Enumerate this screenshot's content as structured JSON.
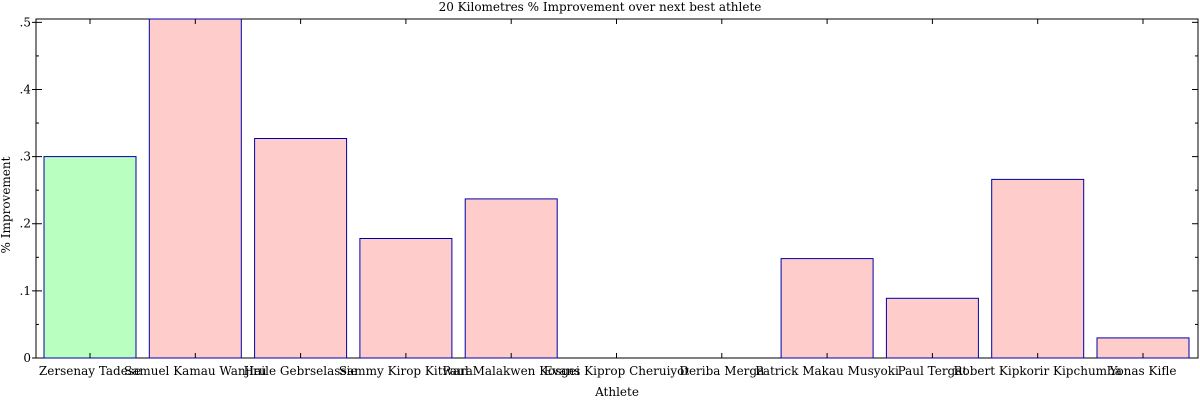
{
  "chart_data": {
    "type": "bar",
    "title": "20 Kilometres % Improvement over next best athlete",
    "xlabel": "Athlete",
    "ylabel": "% Improvement",
    "ylim": [
      0,
      0.505
    ],
    "yticks": [
      {
        "value": 0,
        "label": "0"
      },
      {
        "value": 0.1,
        "label": ".1"
      },
      {
        "value": 0.2,
        "label": ".2"
      },
      {
        "value": 0.3,
        "label": ".3"
      },
      {
        "value": 0.4,
        "label": ".4"
      },
      {
        "value": 0.5,
        "label": ".5"
      }
    ],
    "categories": [
      "Zersenay Tadese",
      "Samuel Kamau Wanjiru",
      "Haile Gebrselassie",
      "Sammy Kirop Kitwara",
      "Paul Malakwen Kosgei",
      "Evans Kiprop Cheruiyot",
      "Deriba Merga",
      "Patrick Makau Musyoki",
      "Paul Tergat",
      "Robert Kipkorir Kipchumba",
      "Yonas Kifle"
    ],
    "values": [
      0.3,
      0.508,
      0.327,
      0.178,
      0.237,
      0.0,
      0.0,
      0.148,
      0.089,
      0.266,
      0.03
    ],
    "bar_colors": [
      "#b9ffbf",
      "#ffcccc",
      "#ffcccc",
      "#ffcccc",
      "#ffcccc",
      "#ffcccc",
      "#ffcccc",
      "#ffcccc",
      "#ffcccc",
      "#ffcccc",
      "#ffcccc"
    ],
    "bar_stroke": "#0000aa",
    "grid": false
  }
}
